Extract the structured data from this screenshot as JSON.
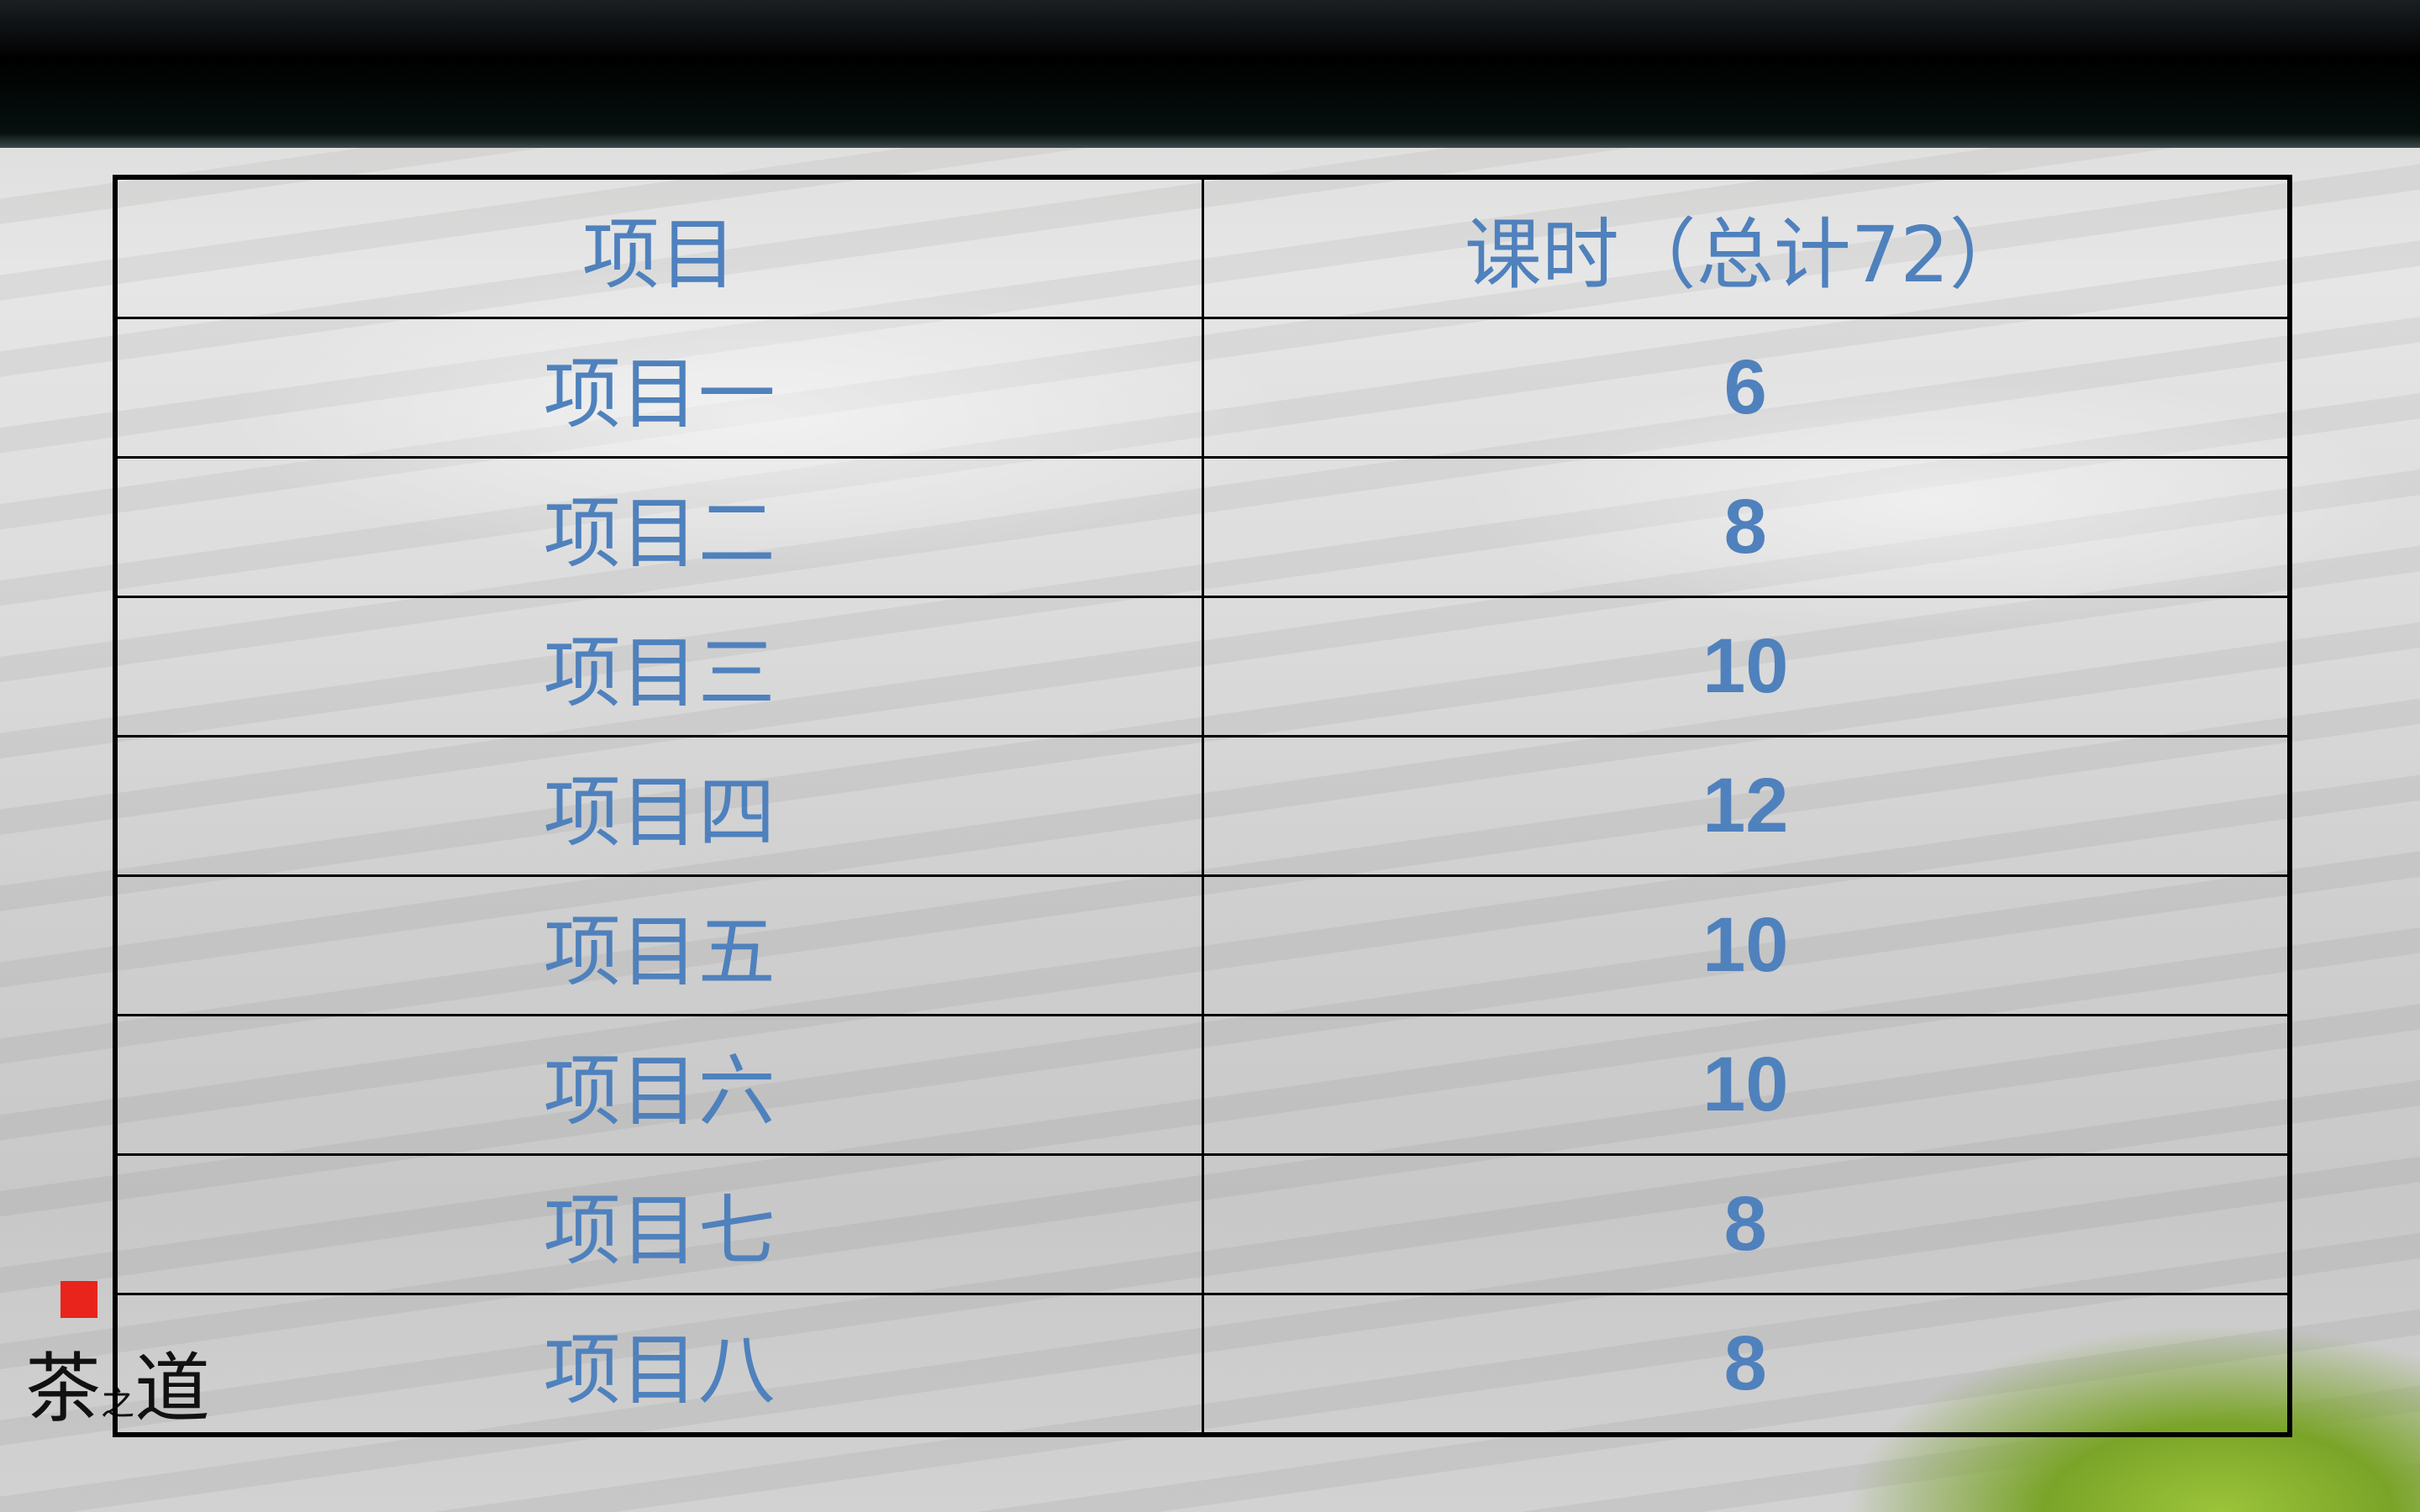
{
  "table": {
    "headers": [
      "项目",
      "课时（总计72）"
    ],
    "rows": [
      {
        "item": "项目一",
        "hours": "6"
      },
      {
        "item": "项目二",
        "hours": "8"
      },
      {
        "item": "项目三",
        "hours": "10"
      },
      {
        "item": "项目四",
        "hours": "12"
      },
      {
        "item": "项目五",
        "hours": "10"
      },
      {
        "item": "项目六",
        "hours": "10"
      },
      {
        "item": "项目七",
        "hours": "8"
      },
      {
        "item": "项目八",
        "hours": "8"
      }
    ]
  },
  "logo": {
    "text": "茶之道"
  },
  "colors": {
    "text": "#4f81bd",
    "border": "#000000"
  }
}
